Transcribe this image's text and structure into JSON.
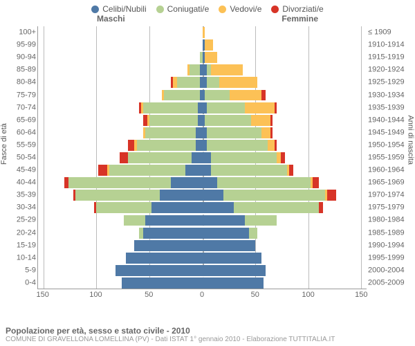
{
  "legend": [
    {
      "label": "Celibi/Nubili",
      "color": "#4f79a6"
    },
    {
      "label": "Coniugati/e",
      "color": "#b6d193"
    },
    {
      "label": "Vedovi/e",
      "color": "#fcc156"
    },
    {
      "label": "Divorziati/e",
      "color": "#d73427"
    }
  ],
  "header_left": "Maschi",
  "header_right": "Femmine",
  "y_left_title": "Fasce di età",
  "y_right_title": "Anni di nascita",
  "age_labels": [
    "100+",
    "95-99",
    "90-94",
    "85-89",
    "80-84",
    "75-79",
    "70-74",
    "65-69",
    "60-64",
    "55-59",
    "50-54",
    "45-49",
    "40-44",
    "35-39",
    "30-34",
    "25-29",
    "20-24",
    "15-19",
    "10-14",
    "5-9",
    "0-4"
  ],
  "year_labels": [
    "≤ 1909",
    "1910-1914",
    "1915-1919",
    "1920-1924",
    "1925-1929",
    "1930-1934",
    "1935-1939",
    "1940-1944",
    "1945-1949",
    "1950-1954",
    "1955-1959",
    "1960-1964",
    "1965-1969",
    "1970-1974",
    "1975-1979",
    "1980-1984",
    "1985-1989",
    "1990-1994",
    "1995-1999",
    "2000-2004",
    "2005-2009"
  ],
  "x_ticks": [
    150,
    100,
    50,
    0,
    50,
    100,
    150
  ],
  "x_max": 155,
  "colors": {
    "single": "#4f79a6",
    "married": "#b6d193",
    "widow": "#fcc156",
    "divorced": "#d73427",
    "grid": "#bbbbbb",
    "axis": "#999999",
    "bg": "#ffffff",
    "text": "#666666"
  },
  "bar_rows": [
    {
      "m": {
        "s": 0,
        "m": 0,
        "w": 0,
        "d": 0
      },
      "f": {
        "s": 0,
        "m": 0,
        "w": 2,
        "d": 0
      }
    },
    {
      "m": {
        "s": 0,
        "m": 0,
        "w": 0,
        "d": 0
      },
      "f": {
        "s": 2,
        "m": 0,
        "w": 8,
        "d": 0
      }
    },
    {
      "m": {
        "s": 0,
        "m": 2,
        "w": 0,
        "d": 0
      },
      "f": {
        "s": 2,
        "m": 0,
        "w": 12,
        "d": 0
      }
    },
    {
      "m": {
        "s": 2,
        "m": 10,
        "w": 2,
        "d": 0
      },
      "f": {
        "s": 4,
        "m": 4,
        "w": 30,
        "d": 0
      }
    },
    {
      "m": {
        "s": 2,
        "m": 22,
        "w": 4,
        "d": 2
      },
      "f": {
        "s": 4,
        "m": 12,
        "w": 36,
        "d": 0
      }
    },
    {
      "m": {
        "s": 2,
        "m": 34,
        "w": 2,
        "d": 0
      },
      "f": {
        "s": 2,
        "m": 24,
        "w": 30,
        "d": 4
      }
    },
    {
      "m": {
        "s": 4,
        "m": 52,
        "w": 2,
        "d": 2
      },
      "f": {
        "s": 4,
        "m": 36,
        "w": 28,
        "d": 2
      }
    },
    {
      "m": {
        "s": 4,
        "m": 46,
        "w": 2,
        "d": 4
      },
      "f": {
        "s": 2,
        "m": 44,
        "w": 18,
        "d": 2
      }
    },
    {
      "m": {
        "s": 6,
        "m": 48,
        "w": 2,
        "d": 0
      },
      "f": {
        "s": 4,
        "m": 52,
        "w": 8,
        "d": 2
      }
    },
    {
      "m": {
        "s": 6,
        "m": 56,
        "w": 2,
        "d": 6
      },
      "f": {
        "s": 4,
        "m": 58,
        "w": 6,
        "d": 2
      }
    },
    {
      "m": {
        "s": 10,
        "m": 60,
        "w": 0,
        "d": 8
      },
      "f": {
        "s": 8,
        "m": 62,
        "w": 4,
        "d": 4
      }
    },
    {
      "m": {
        "s": 16,
        "m": 72,
        "w": 2,
        "d": 8
      },
      "f": {
        "s": 8,
        "m": 72,
        "w": 2,
        "d": 4
      }
    },
    {
      "m": {
        "s": 30,
        "m": 96,
        "w": 0,
        "d": 4
      },
      "f": {
        "s": 14,
        "m": 88,
        "w": 2,
        "d": 6
      }
    },
    {
      "m": {
        "s": 40,
        "m": 80,
        "w": 0,
        "d": 2
      },
      "f": {
        "s": 20,
        "m": 96,
        "w": 2,
        "d": 8
      }
    },
    {
      "m": {
        "s": 48,
        "m": 52,
        "w": 0,
        "d": 2
      },
      "f": {
        "s": 30,
        "m": 80,
        "w": 0,
        "d": 4
      }
    },
    {
      "m": {
        "s": 54,
        "m": 20,
        "w": 0,
        "d": 0
      },
      "f": {
        "s": 40,
        "m": 30,
        "w": 0,
        "d": 0
      }
    },
    {
      "m": {
        "s": 56,
        "m": 4,
        "w": 0,
        "d": 0
      },
      "f": {
        "s": 44,
        "m": 8,
        "w": 0,
        "d": 0
      }
    },
    {
      "m": {
        "s": 64,
        "m": 0,
        "w": 0,
        "d": 0
      },
      "f": {
        "s": 50,
        "m": 0,
        "w": 0,
        "d": 0
      }
    },
    {
      "m": {
        "s": 72,
        "m": 0,
        "w": 0,
        "d": 0
      },
      "f": {
        "s": 56,
        "m": 0,
        "w": 0,
        "d": 0
      }
    },
    {
      "m": {
        "s": 82,
        "m": 0,
        "w": 0,
        "d": 0
      },
      "f": {
        "s": 60,
        "m": 0,
        "w": 0,
        "d": 0
      }
    },
    {
      "m": {
        "s": 76,
        "m": 0,
        "w": 0,
        "d": 0
      },
      "f": {
        "s": 58,
        "m": 0,
        "w": 0,
        "d": 0
      }
    }
  ],
  "title": "Popolazione per età, sesso e stato civile - 2010",
  "subtitle": "COMUNE DI GRAVELLONA LOMELLINA (PV) - Dati ISTAT 1° gennaio 2010 - Elaborazione TUTTITALIA.IT",
  "style": {
    "bar_gap_pct": 12,
    "label_fontsize": 11,
    "legend_fontsize": 12,
    "title_fontsize": 12,
    "subtitle_fontsize": 10
  }
}
